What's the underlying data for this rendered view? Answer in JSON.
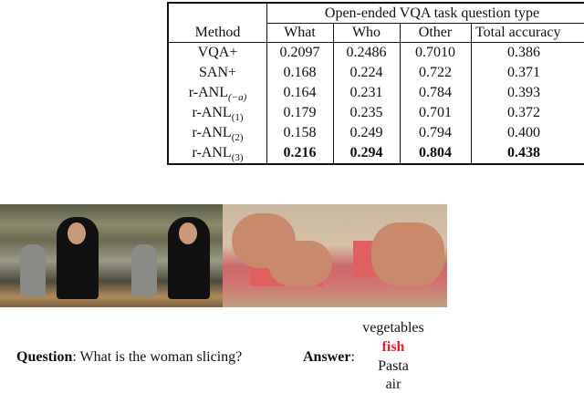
{
  "table": {
    "group_header": "Open-ended VQA task question type",
    "columns": [
      "Method",
      "What",
      "Who",
      "Other",
      "Total accuracy"
    ],
    "rows": [
      {
        "method": "VQA+",
        "sub": "",
        "values": [
          "0.2097",
          "0.2486",
          "0.7010",
          "0.386"
        ],
        "bold": false
      },
      {
        "method": "SAN+",
        "sub": "",
        "values": [
          "0.168",
          "0.224",
          "0.722",
          "0.371"
        ],
        "bold": false
      },
      {
        "method": "r-ANL",
        "sub": "(−a)",
        "values": [
          "0.164",
          "0.231",
          "0.784",
          "0.393"
        ],
        "bold": false
      },
      {
        "method": "r-ANL",
        "sub": "(1)",
        "values": [
          "0.179",
          "0.235",
          "0.701",
          "0.372"
        ],
        "bold": false
      },
      {
        "method": "r-ANL",
        "sub": "(2)",
        "values": [
          "0.158",
          "0.249",
          "0.794",
          "0.400"
        ],
        "bold": false
      },
      {
        "method": "r-ANL",
        "sub": "(3)",
        "values": [
          "0.216",
          "0.294",
          "0.804",
          "0.438"
        ],
        "bold": true
      }
    ]
  },
  "example": {
    "question_label": "Question",
    "question_text": ": What is the woman slicing?",
    "answer_label": "Answer",
    "answer_colon": ":",
    "answers": [
      "vegetables",
      "fish",
      "Pasta",
      "air"
    ],
    "highlight_color": "#e8202a"
  }
}
